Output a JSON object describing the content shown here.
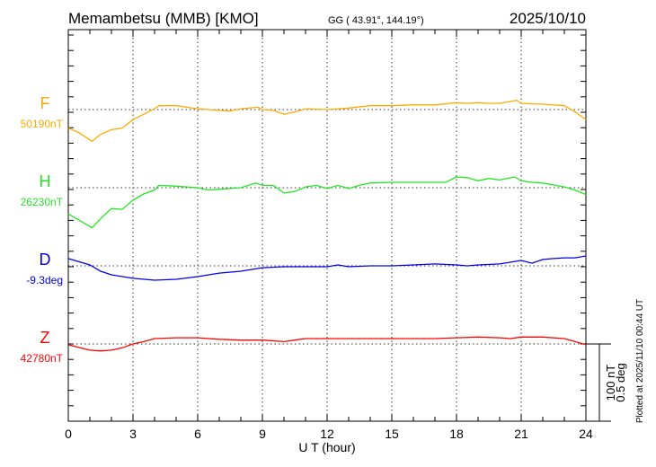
{
  "header": {
    "station": "Memambetsu (MMB)  [KMO]",
    "coords": "GG ( 43.91°, 144.19°)",
    "date": "2025/10/10"
  },
  "footer": {
    "xlabel": "U T (hour)",
    "plotted": "Plotted at 2025/11/10 00:44 UT",
    "scale_nt": "100 nT",
    "scale_deg": "0.5 deg"
  },
  "chart_data": {
    "type": "line",
    "title": "Memambetsu (MMB)  [KMO]",
    "xlabel": "U T (hour)",
    "xlim": [
      0,
      24
    ],
    "xticks": [
      "0",
      "3",
      "6",
      "9",
      "12",
      "15",
      "18",
      "21",
      "24"
    ],
    "grid": true,
    "scale": {
      "nT_per_bar": 100,
      "deg_per_bar": 0.5
    },
    "series": [
      {
        "name": "F",
        "baseline_label": "50190nT",
        "color": "#ffaa00",
        "x": [
          0,
          0.5,
          1.1,
          1.5,
          2,
          2.5,
          3,
          3.5,
          4,
          4.2,
          5,
          6,
          7,
          7.5,
          8,
          8.8,
          9,
          9.5,
          10,
          10.5,
          11,
          12,
          13,
          14,
          15,
          16,
          17,
          18,
          18.5,
          19,
          19.5,
          20,
          20.8,
          21,
          22,
          23,
          23.5,
          24
        ],
        "y": [
          -24,
          -30,
          -41,
          -32,
          -26,
          -24,
          -13,
          -6,
          1,
          5,
          5,
          1,
          -1,
          -2,
          1,
          3,
          0,
          -1,
          -6,
          -3,
          1,
          0,
          2,
          5,
          5,
          6,
          6,
          9,
          8,
          9,
          8,
          8,
          12,
          8,
          7,
          5,
          -3,
          -13
        ]
      },
      {
        "name": "H",
        "baseline_label": "26230nT",
        "color": "#22e622",
        "x": [
          0,
          0.5,
          1.1,
          1.5,
          2,
          2.5,
          3,
          3.5,
          4,
          4.2,
          5,
          6,
          6.5,
          7,
          8,
          8.7,
          9,
          9.5,
          10,
          10.5,
          11,
          11.5,
          12,
          12.5,
          13,
          13.5,
          14,
          15,
          16,
          17,
          17.5,
          18,
          18.5,
          19,
          19.5,
          20,
          20.7,
          21,
          21.5,
          22,
          23,
          23.5,
          24
        ],
        "y": [
          -34,
          -42,
          -52,
          -40,
          -27,
          -28,
          -16,
          -8,
          -3,
          3,
          2,
          0,
          -3,
          -2,
          0,
          6,
          3,
          3,
          -7,
          -5,
          1,
          3,
          -1,
          3,
          -1,
          3,
          6,
          7,
          7,
          7,
          7,
          14,
          13,
          9,
          12,
          10,
          14,
          9,
          7,
          6,
          1,
          -3,
          -9
        ]
      },
      {
        "name": "D",
        "baseline_label": "-9.3deg",
        "color": "#0000ee",
        "x": [
          0,
          1,
          1.5,
          2,
          3,
          4,
          5,
          6,
          7,
          8,
          9,
          10,
          11,
          12,
          12.5,
          13,
          14,
          15,
          16,
          17,
          18,
          18.5,
          19,
          20,
          21,
          21.5,
          22,
          22.5,
          23,
          23.5,
          24
        ],
        "y": [
          0.047,
          0.006,
          -0.035,
          -0.058,
          -0.081,
          -0.093,
          -0.087,
          -0.07,
          -0.047,
          -0.035,
          -0.012,
          -0.006,
          -0.006,
          -0.006,
          0.006,
          -0.006,
          0,
          0,
          0.006,
          0.012,
          0.006,
          0,
          0.006,
          0.012,
          0.035,
          0.017,
          0.041,
          0.047,
          0.052,
          0.052,
          0.064
        ]
      },
      {
        "name": "Z",
        "baseline_label": "42780nT",
        "color": "#ff0000",
        "x": [
          0,
          1,
          1.5,
          2,
          2.5,
          3,
          3.5,
          4,
          5,
          6,
          7,
          8,
          9,
          10,
          10.5,
          11,
          12,
          13,
          14,
          15,
          16,
          17,
          18,
          19,
          20,
          20.5,
          21,
          22,
          23,
          23.5,
          24
        ],
        "y": [
          -1,
          -8,
          -9,
          -8,
          -5,
          0,
          3,
          7,
          8,
          8,
          6,
          5,
          5,
          3,
          5,
          7,
          7,
          7,
          7,
          7,
          7,
          7,
          8,
          9,
          8,
          7,
          9,
          9,
          7,
          3,
          -1
        ]
      }
    ]
  }
}
